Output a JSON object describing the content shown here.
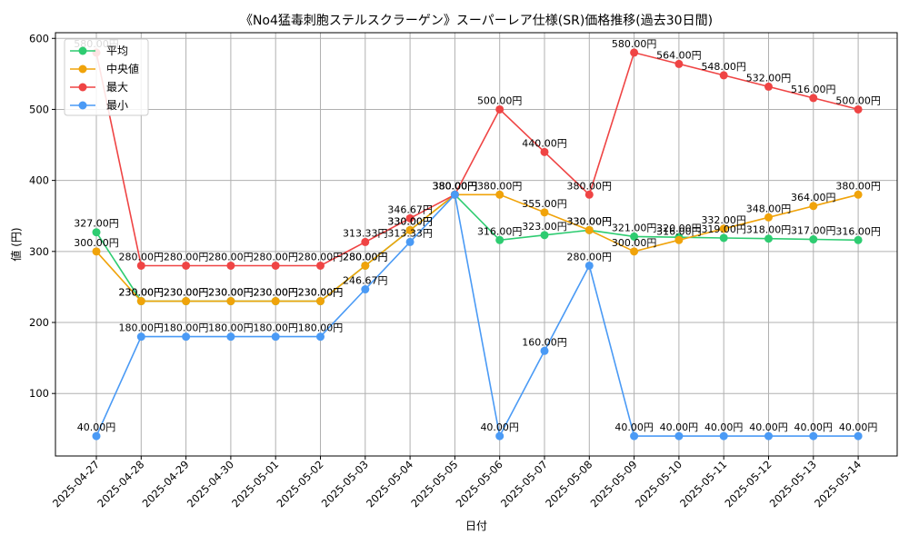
{
  "chart_data": {
    "type": "line",
    "title": "《No4猛毒刺胞ステルスクラーゲン》スーパーレア仕様(SR)価格推移(過去30日間)",
    "xlabel": "日付",
    "ylabel": "値 (円)",
    "x": [
      "2025-04-27",
      "2025-04-28",
      "2025-04-29",
      "2025-04-30",
      "2025-05-01",
      "2025-05-02",
      "2025-05-03",
      "2025-05-04",
      "2025-05-05",
      "2025-05-06",
      "2025-05-07",
      "2025-05-08",
      "2025-05-09",
      "2025-05-10",
      "2025-05-11",
      "2025-05-12",
      "2025-05-13",
      "2025-05-14"
    ],
    "ylim": [
      12,
      608
    ],
    "yticks": [
      100,
      200,
      300,
      400,
      500,
      600
    ],
    "grid": true,
    "legend": "top-left",
    "label_suffix": "円",
    "series": [
      {
        "name": "平均",
        "color": "#2ecc71",
        "values": [
          327,
          230,
          230,
          230,
          230,
          230,
          280,
          330,
          380,
          316,
          323,
          330,
          321,
          320,
          319,
          318,
          317,
          316
        ]
      },
      {
        "name": "中央値",
        "color": "#f0a30a",
        "values": [
          300,
          230,
          230,
          230,
          230,
          230,
          280,
          330,
          380,
          380,
          355,
          330,
          300,
          316,
          332,
          348,
          364,
          380
        ]
      },
      {
        "name": "最大",
        "color": "#ef4444",
        "values": [
          580,
          280,
          280,
          280,
          280,
          280,
          313.33,
          346.67,
          380,
          500,
          440,
          380,
          580,
          564,
          548,
          532,
          516,
          500
        ]
      },
      {
        "name": "最小",
        "color": "#4a9af5",
        "values": [
          40,
          180,
          180,
          180,
          180,
          180,
          246.67,
          313.33,
          380,
          40,
          160,
          280,
          40,
          40,
          40,
          40,
          40,
          40
        ]
      }
    ]
  }
}
